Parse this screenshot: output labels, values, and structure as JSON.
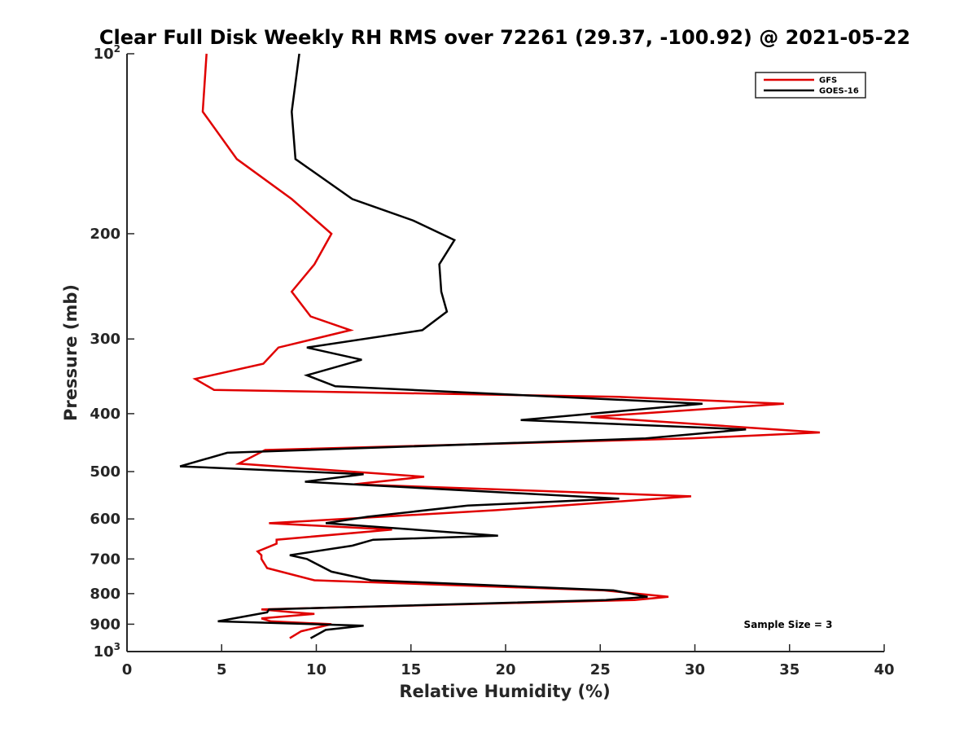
{
  "chart_data": {
    "type": "line",
    "title": "Clear Full Disk Weekly RH RMS over 72261 (29.37, -100.92) @ 2021-05-22",
    "xlabel": "Relative Humidity (%)",
    "ylabel": "Pressure (mb)",
    "xlim": [
      0,
      40
    ],
    "ylim": [
      100,
      1000
    ],
    "y_scale": "log",
    "y_reversed": true,
    "x_ticks": [
      "0",
      "5",
      "10",
      "15",
      "20",
      "25",
      "30",
      "35",
      "40"
    ],
    "y_ticks": [
      {
        "value": 100,
        "base": "10",
        "exp": "2"
      },
      {
        "value": 200,
        "label": "200"
      },
      {
        "value": 300,
        "label": "300"
      },
      {
        "value": 400,
        "label": "400"
      },
      {
        "value": 500,
        "label": "500"
      },
      {
        "value": 600,
        "label": "600"
      },
      {
        "value": 700,
        "label": "700"
      },
      {
        "value": 800,
        "label": "800"
      },
      {
        "value": 900,
        "label": "900"
      },
      {
        "value": 1000,
        "base": "10",
        "exp": "3"
      }
    ],
    "legend_position": "top-right",
    "annotation": "Sample Size = 3",
    "series": [
      {
        "name": "GFS",
        "color": "#e00000",
        "points": [
          [
            4.2,
            100
          ],
          [
            4.0,
            125
          ],
          [
            5.8,
            150
          ],
          [
            8.7,
            175
          ],
          [
            10.8,
            200
          ],
          [
            9.9,
            225
          ],
          [
            8.7,
            250
          ],
          [
            9.7,
            275
          ],
          [
            11.8,
            290
          ],
          [
            8.0,
            310
          ],
          [
            7.2,
            330
          ],
          [
            3.6,
            350
          ],
          [
            4.6,
            365
          ],
          [
            26.0,
            375
          ],
          [
            34.7,
            385
          ],
          [
            24.5,
            405
          ],
          [
            36.6,
            430
          ],
          [
            29.8,
            440
          ],
          [
            7.3,
            460
          ],
          [
            5.9,
            485
          ],
          [
            15.7,
            510
          ],
          [
            12.0,
            525
          ],
          [
            29.8,
            550
          ],
          [
            19.5,
            580
          ],
          [
            7.5,
            610
          ],
          [
            14.0,
            625
          ],
          [
            7.9,
            650
          ],
          [
            7.9,
            660
          ],
          [
            6.9,
            680
          ],
          [
            7.1,
            690
          ],
          [
            7.1,
            700
          ],
          [
            7.4,
            725
          ],
          [
            9.9,
            760
          ],
          [
            25.2,
            790
          ],
          [
            28.6,
            810
          ],
          [
            26.8,
            820
          ],
          [
            7.1,
            850
          ],
          [
            8.8,
            860
          ],
          [
            9.9,
            865
          ],
          [
            7.1,
            880
          ],
          [
            7.6,
            890
          ],
          [
            10.8,
            900
          ],
          [
            9.2,
            925
          ],
          [
            8.6,
            950
          ]
        ]
      },
      {
        "name": "GOES-16",
        "color": "#000000",
        "points": [
          [
            9.1,
            100
          ],
          [
            8.7,
            125
          ],
          [
            8.9,
            150
          ],
          [
            11.9,
            175
          ],
          [
            15.1,
            190
          ],
          [
            17.3,
            205
          ],
          [
            16.5,
            225
          ],
          [
            16.6,
            250
          ],
          [
            16.9,
            270
          ],
          [
            15.6,
            290
          ],
          [
            9.5,
            310
          ],
          [
            12.4,
            325
          ],
          [
            9.5,
            345
          ],
          [
            11.0,
            360
          ],
          [
            30.4,
            385
          ],
          [
            20.8,
            410
          ],
          [
            32.7,
            425
          ],
          [
            27.4,
            440
          ],
          [
            5.3,
            465
          ],
          [
            2.8,
            490
          ],
          [
            12.5,
            505
          ],
          [
            9.4,
            520
          ],
          [
            26.0,
            555
          ],
          [
            18.0,
            570
          ],
          [
            12.7,
            595
          ],
          [
            10.5,
            610
          ],
          [
            19.6,
            640
          ],
          [
            13.0,
            650
          ],
          [
            11.9,
            665
          ],
          [
            8.6,
            690
          ],
          [
            9.5,
            700
          ],
          [
            10.8,
            735
          ],
          [
            12.9,
            760
          ],
          [
            25.7,
            790
          ],
          [
            27.5,
            810
          ],
          [
            25.3,
            820
          ],
          [
            7.5,
            850
          ],
          [
            7.4,
            860
          ],
          [
            4.8,
            890
          ],
          [
            12.5,
            905
          ],
          [
            10.5,
            920
          ],
          [
            9.7,
            950
          ]
        ]
      }
    ]
  }
}
